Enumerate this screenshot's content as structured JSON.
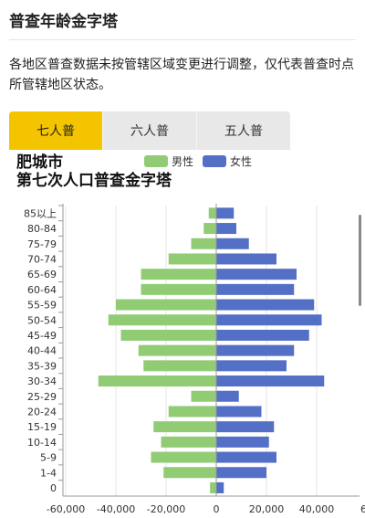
{
  "header": {
    "title": "普查年龄金字塔"
  },
  "description": "各地区普查数据未按管辖区域变更进行调整，仅代表普查时点所管辖地区状态。",
  "tabs": [
    {
      "label": "七人普",
      "active": true
    },
    {
      "label": "六人普",
      "active": false
    },
    {
      "label": "五人普",
      "active": false
    }
  ],
  "chart_data": {
    "type": "bar",
    "orientation": "horizontal",
    "title_line1": "肥城市",
    "title_line2": "第七次人口普查金字塔",
    "categories": [
      "85以上",
      "80-84",
      "75-79",
      "70-74",
      "65-69",
      "60-64",
      "55-59",
      "50-54",
      "45-49",
      "40-44",
      "35-39",
      "30-34",
      "25-29",
      "20-24",
      "15-19",
      "10-14",
      "5-9",
      "1-4",
      "0"
    ],
    "series": [
      {
        "name": "男性",
        "color": "#91cc75",
        "values": [
          3000,
          5000,
          10000,
          19000,
          30000,
          30000,
          40000,
          43000,
          38000,
          31000,
          29000,
          47000,
          10000,
          19000,
          25000,
          22000,
          26000,
          21000,
          2500
        ]
      },
      {
        "name": "女性",
        "color": "#5470c6",
        "values": [
          7000,
          8000,
          13000,
          24000,
          32000,
          31000,
          39000,
          42000,
          37000,
          31000,
          28000,
          43000,
          9000,
          18000,
          23000,
          21000,
          24000,
          20000,
          3000
        ]
      }
    ],
    "xlim": [
      -60000,
      60000
    ],
    "xticks": [
      "-60,000",
      "-40,000",
      "-20,000",
      "0",
      "20,000",
      "40,000",
      "60"
    ]
  }
}
